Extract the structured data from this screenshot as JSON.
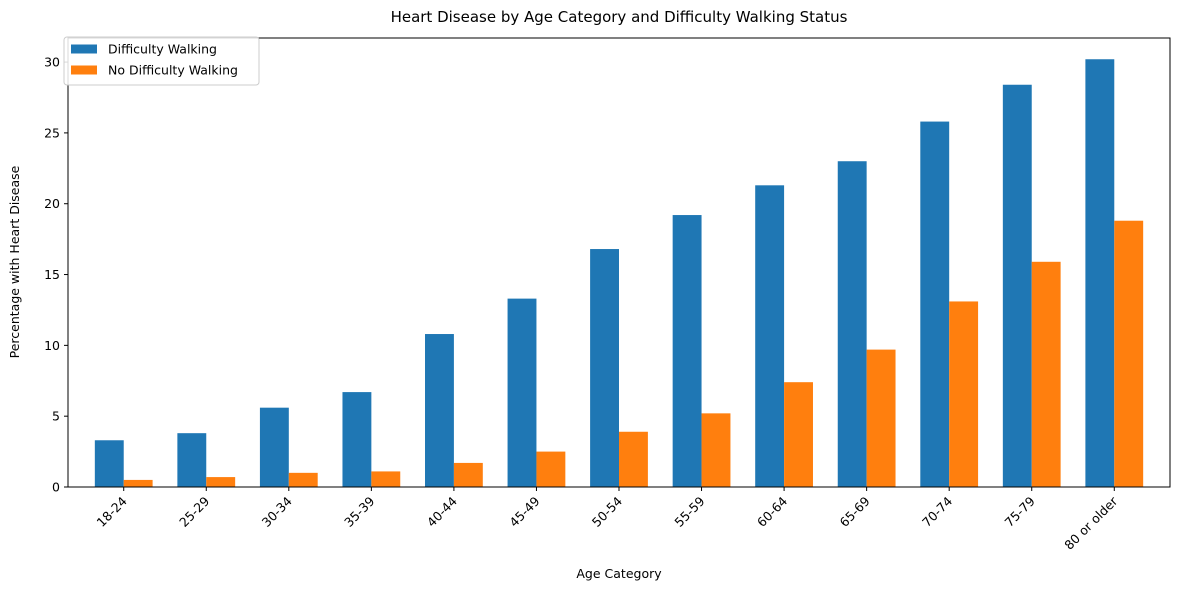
{
  "chart_data": {
    "type": "bar",
    "title": "Heart Disease by Age Category and Difficulty Walking Status",
    "xlabel": "Age Category",
    "ylabel": "Percentage with Heart Disease",
    "categories": [
      "18-24",
      "25-29",
      "30-34",
      "35-39",
      "40-44",
      "45-49",
      "50-54",
      "55-59",
      "60-64",
      "65-69",
      "70-74",
      "75-79",
      "80 or older"
    ],
    "series": [
      {
        "name": "Difficulty Walking",
        "color": "#1f77b4",
        "values": [
          3.3,
          3.8,
          5.6,
          6.7,
          10.8,
          13.3,
          16.8,
          19.2,
          21.3,
          23.0,
          25.8,
          28.4,
          30.2
        ]
      },
      {
        "name": "No Difficulty Walking",
        "color": "#ff7f0e",
        "values": [
          0.5,
          0.7,
          1.0,
          1.1,
          1.7,
          2.5,
          3.9,
          5.2,
          7.4,
          9.7,
          13.1,
          15.9,
          18.8
        ]
      }
    ],
    "ylim": [
      0,
      31.7
    ],
    "yticks": [
      0,
      5,
      10,
      15,
      20,
      25,
      30
    ],
    "grid": false,
    "legend": "top-left"
  }
}
